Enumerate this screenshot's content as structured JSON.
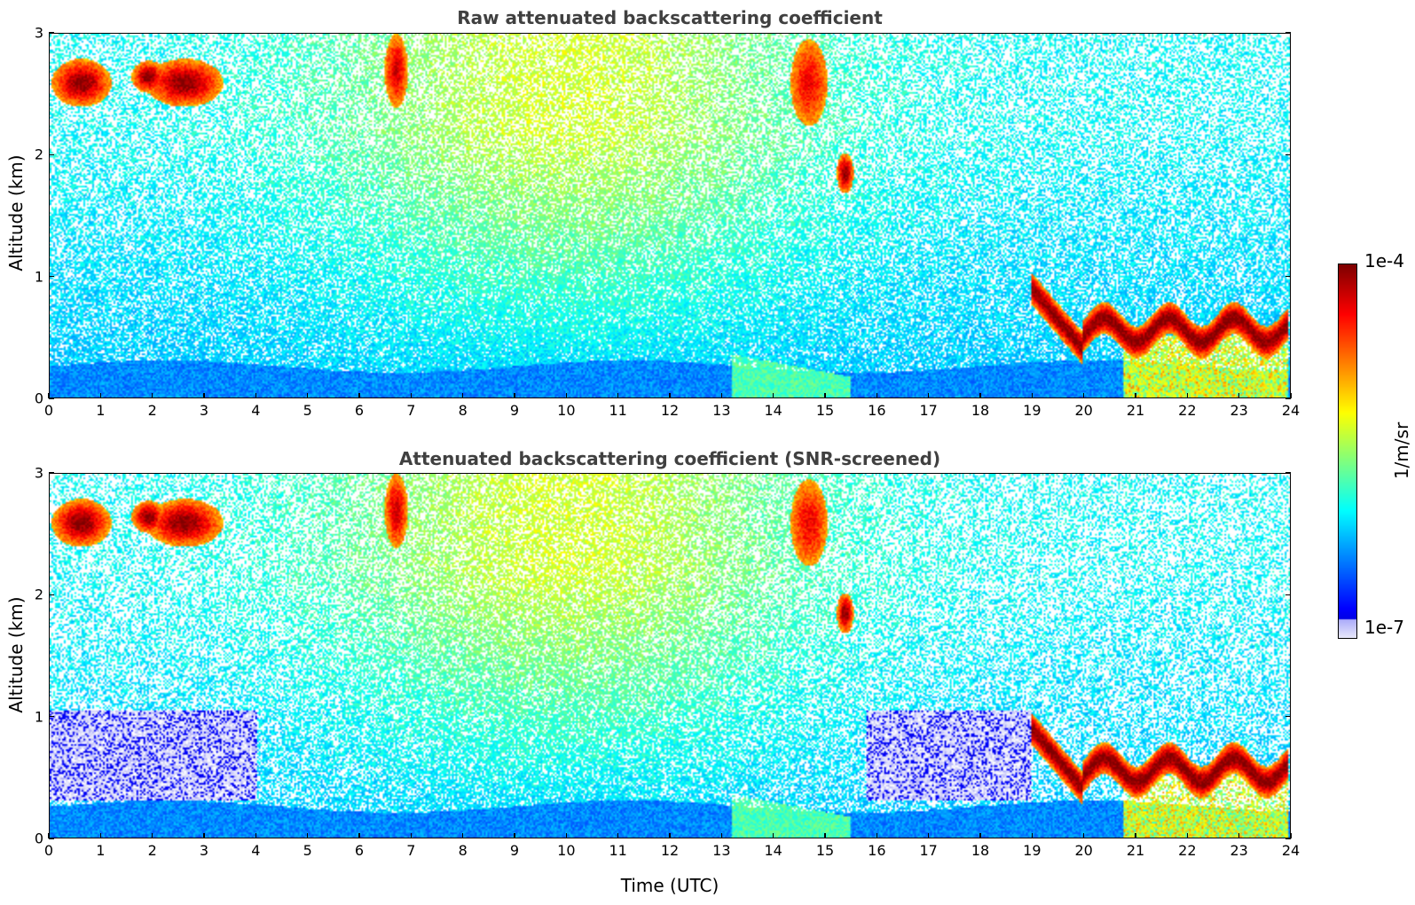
{
  "chart_data": [
    {
      "type": "heatmap",
      "title": "Raw attenuated backscattering coefficient",
      "xlabel": "",
      "ylabel": "Altitude (km)",
      "xlim": [
        0,
        24
      ],
      "ylim": [
        0,
        3
      ],
      "x_ticks": [
        "0",
        "1",
        "2",
        "3",
        "4",
        "5",
        "6",
        "7",
        "8",
        "9",
        "10",
        "11",
        "12",
        "13",
        "14",
        "15",
        "16",
        "17",
        "18",
        "19",
        "20",
        "21",
        "22",
        "23",
        "24"
      ],
      "y_ticks": [
        "0",
        "1",
        "2",
        "3"
      ],
      "features": [
        {
          "name": "boundary layer",
          "t_start": 0,
          "t_end": 24,
          "alt_top_km": 0.3
        },
        {
          "name": "aerosol plume",
          "t_start": 13.2,
          "t_end": 15.5,
          "alt_top_km": 0.35
        },
        {
          "name": "high cloud",
          "t_start": 0,
          "t_end": 3.5,
          "alt_km": 2.7
        },
        {
          "name": "cloud streaks",
          "t_start": 6,
          "t_end": 7,
          "alt_km": 2.6
        },
        {
          "name": "cloud streaks",
          "t_start": 14.3,
          "t_end": 15.5,
          "alt_km": 2.3
        },
        {
          "name": "low cloud",
          "t_start": 19,
          "t_end": 24,
          "alt_km": 0.6
        }
      ]
    },
    {
      "type": "heatmap",
      "title": "Attenuated backscattering coefficient (SNR-screened)",
      "xlabel": "Time (UTC)",
      "ylabel": "Altitude (km)",
      "xlim": [
        0,
        24
      ],
      "ylim": [
        0,
        3
      ],
      "x_ticks": [
        "0",
        "1",
        "2",
        "3",
        "4",
        "5",
        "6",
        "7",
        "8",
        "9",
        "10",
        "11",
        "12",
        "13",
        "14",
        "15",
        "16",
        "17",
        "18",
        "19",
        "20",
        "21",
        "22",
        "23",
        "24"
      ],
      "y_ticks": [
        "0",
        "1",
        "2",
        "3"
      ],
      "screening": "SNR"
    }
  ],
  "colorbar": {
    "min_label": "1e-7",
    "max_label": "1e-4",
    "unit": "1/m/sr",
    "scale": "log",
    "colormap": "jet"
  }
}
